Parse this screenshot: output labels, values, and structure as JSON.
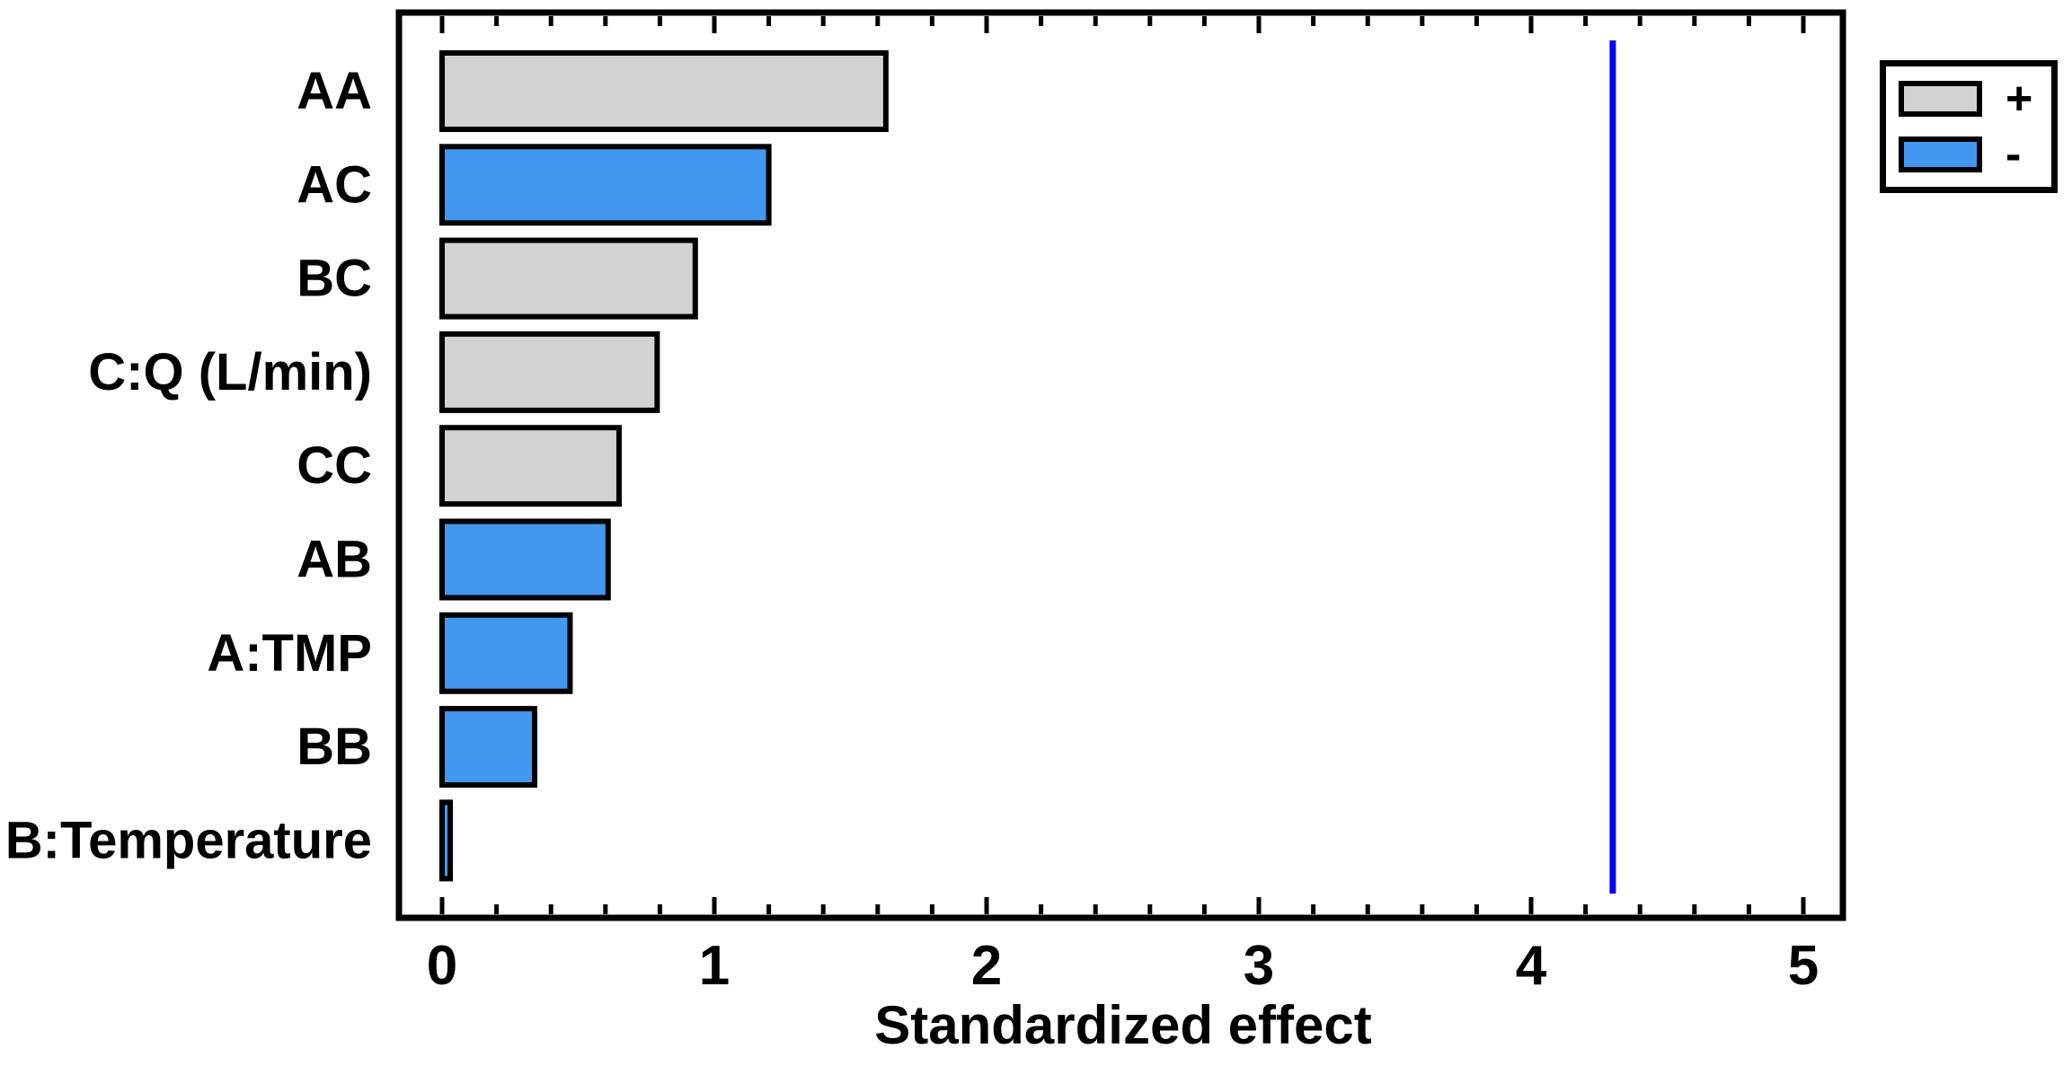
{
  "chart_data": {
    "type": "bar",
    "orientation": "horizontal",
    "title": "",
    "xlabel": "Standardized effect",
    "ylabel": "",
    "categories": [
      "AA",
      "AC",
      "BC",
      "C:Q (L/min)",
      "CC",
      "AB",
      "A:TMP",
      "BB",
      "B:Temperature"
    ],
    "series": [
      {
        "name": "standardized-effect",
        "values": [
          1.63,
          1.2,
          0.93,
          0.79,
          0.65,
          0.61,
          0.47,
          0.34,
          0.03
        ],
        "signs": [
          "+",
          "-",
          "+",
          "+",
          "+",
          "-",
          "-",
          "-",
          "-"
        ]
      }
    ],
    "xlim": [
      -0.16,
      5.15
    ],
    "x_major_ticks": [
      0,
      1,
      2,
      3,
      4,
      5
    ],
    "x_minor_tick_step": 0.2,
    "reference_line_value": 4.3,
    "grid": false,
    "legend": {
      "position": "top-right",
      "items": [
        {
          "label": "+",
          "color": "#d2d2d2"
        },
        {
          "label": "-",
          "color": "#4297ee"
        }
      ]
    },
    "colors": {
      "positive_bar": "#d2d2d2",
      "negative_bar": "#4297ee",
      "bar_border": "#000000",
      "reference_line": "#0000ff",
      "frame": "#000000",
      "text": "#000000"
    }
  }
}
